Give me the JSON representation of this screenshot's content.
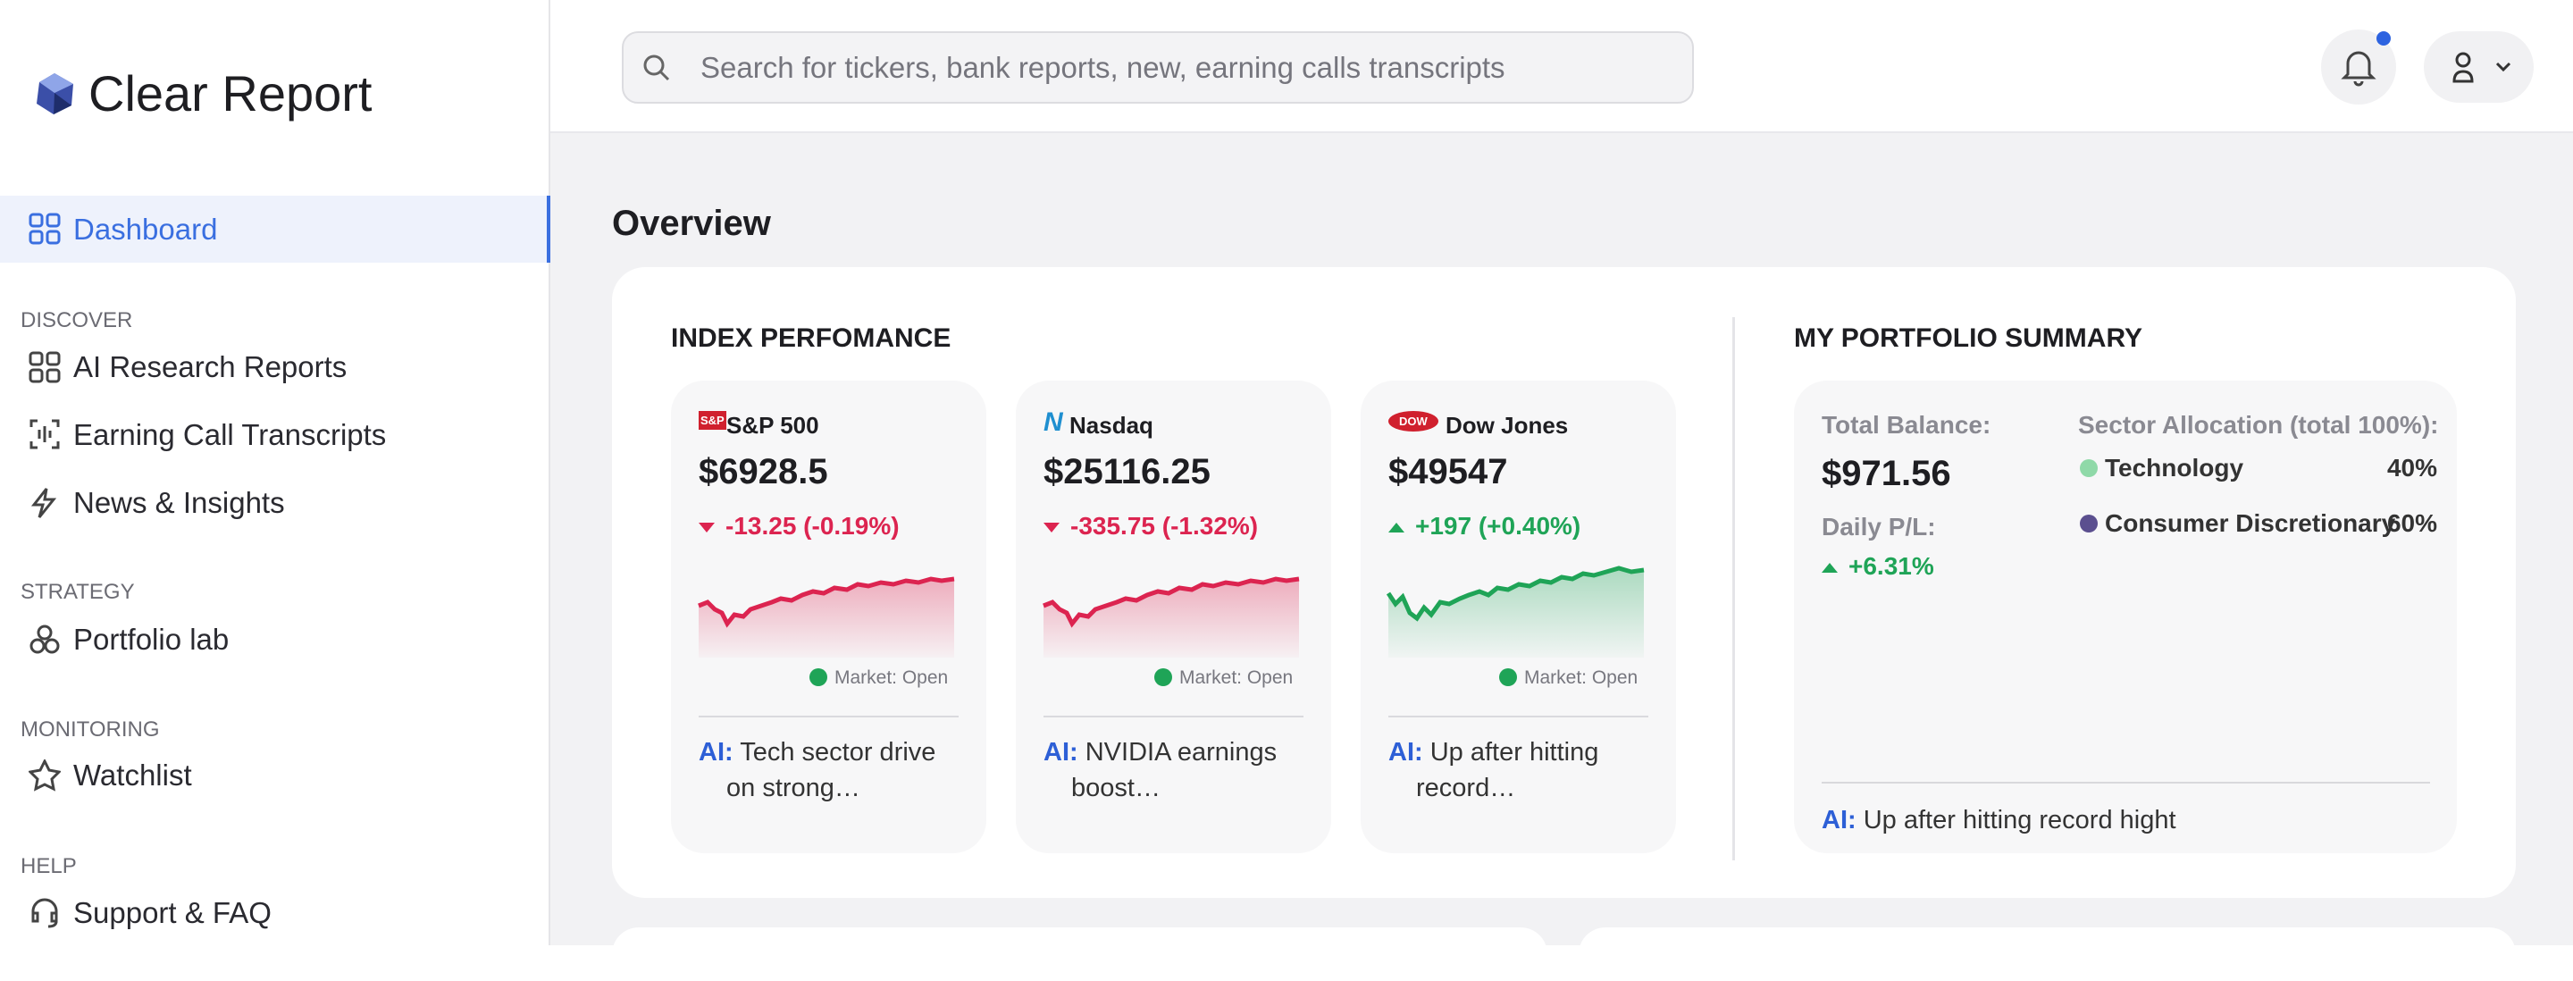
{
  "brand": "Clear Report",
  "search_placeholder": "Search for tickers, bank reports, new, earning calls transcripts",
  "nav": {
    "active": "Dashboard",
    "sections": [
      {
        "heading": "DISCOVER",
        "items": [
          "AI Research Reports",
          "Earning Call Transcripts",
          "News & Insights"
        ]
      },
      {
        "heading": "STRATEGY",
        "items": [
          "Portfolio lab"
        ]
      },
      {
        "heading": "MONITORING",
        "items": [
          "Watchlist"
        ]
      },
      {
        "heading": "HELP",
        "items": [
          "Support & FAQ"
        ]
      }
    ]
  },
  "overview": {
    "title": "Overview",
    "index_title": "INDEX PERFOMANCE",
    "indices": [
      {
        "logo": "S&P",
        "name": "S&P 500",
        "price": "$6928.5",
        "change": "-13.25 (-0.19%)",
        "direction": "down",
        "market": "Market: Open",
        "ai_label": "AI:",
        "ai_text": "Tech sector drive on strong…"
      },
      {
        "logo": "N",
        "name": "Nasdaq",
        "price": "$25116.25",
        "change": "-335.75 (-1.32%)",
        "direction": "down",
        "market": "Market: Open",
        "ai_label": "AI:",
        "ai_text": "NVIDIA earnings boost…"
      },
      {
        "logo": "DOW",
        "name": "Dow Jones",
        "price": "$49547",
        "change": "+197 (+0.40%)",
        "direction": "up",
        "market": "Market: Open",
        "ai_label": "AI:",
        "ai_text": "Up after hitting record…"
      }
    ]
  },
  "portfolio": {
    "title": "MY PORTFOLIO SUMMARY",
    "balance_label": "Total Balance:",
    "balance": "$971.56",
    "pl_label": "Daily P/L:",
    "pl": "+6.31%",
    "allocation_label": "Sector Allocation (total 100%):",
    "sectors": [
      {
        "name": "Technology",
        "share": "40%",
        "color": "#8fd9a8"
      },
      {
        "name": "Consumer Discretionary",
        "share": "60%",
        "color": "#5b4f8f"
      }
    ],
    "ai_label": "AI:",
    "ai_text": "Up after hitting record hight"
  }
}
